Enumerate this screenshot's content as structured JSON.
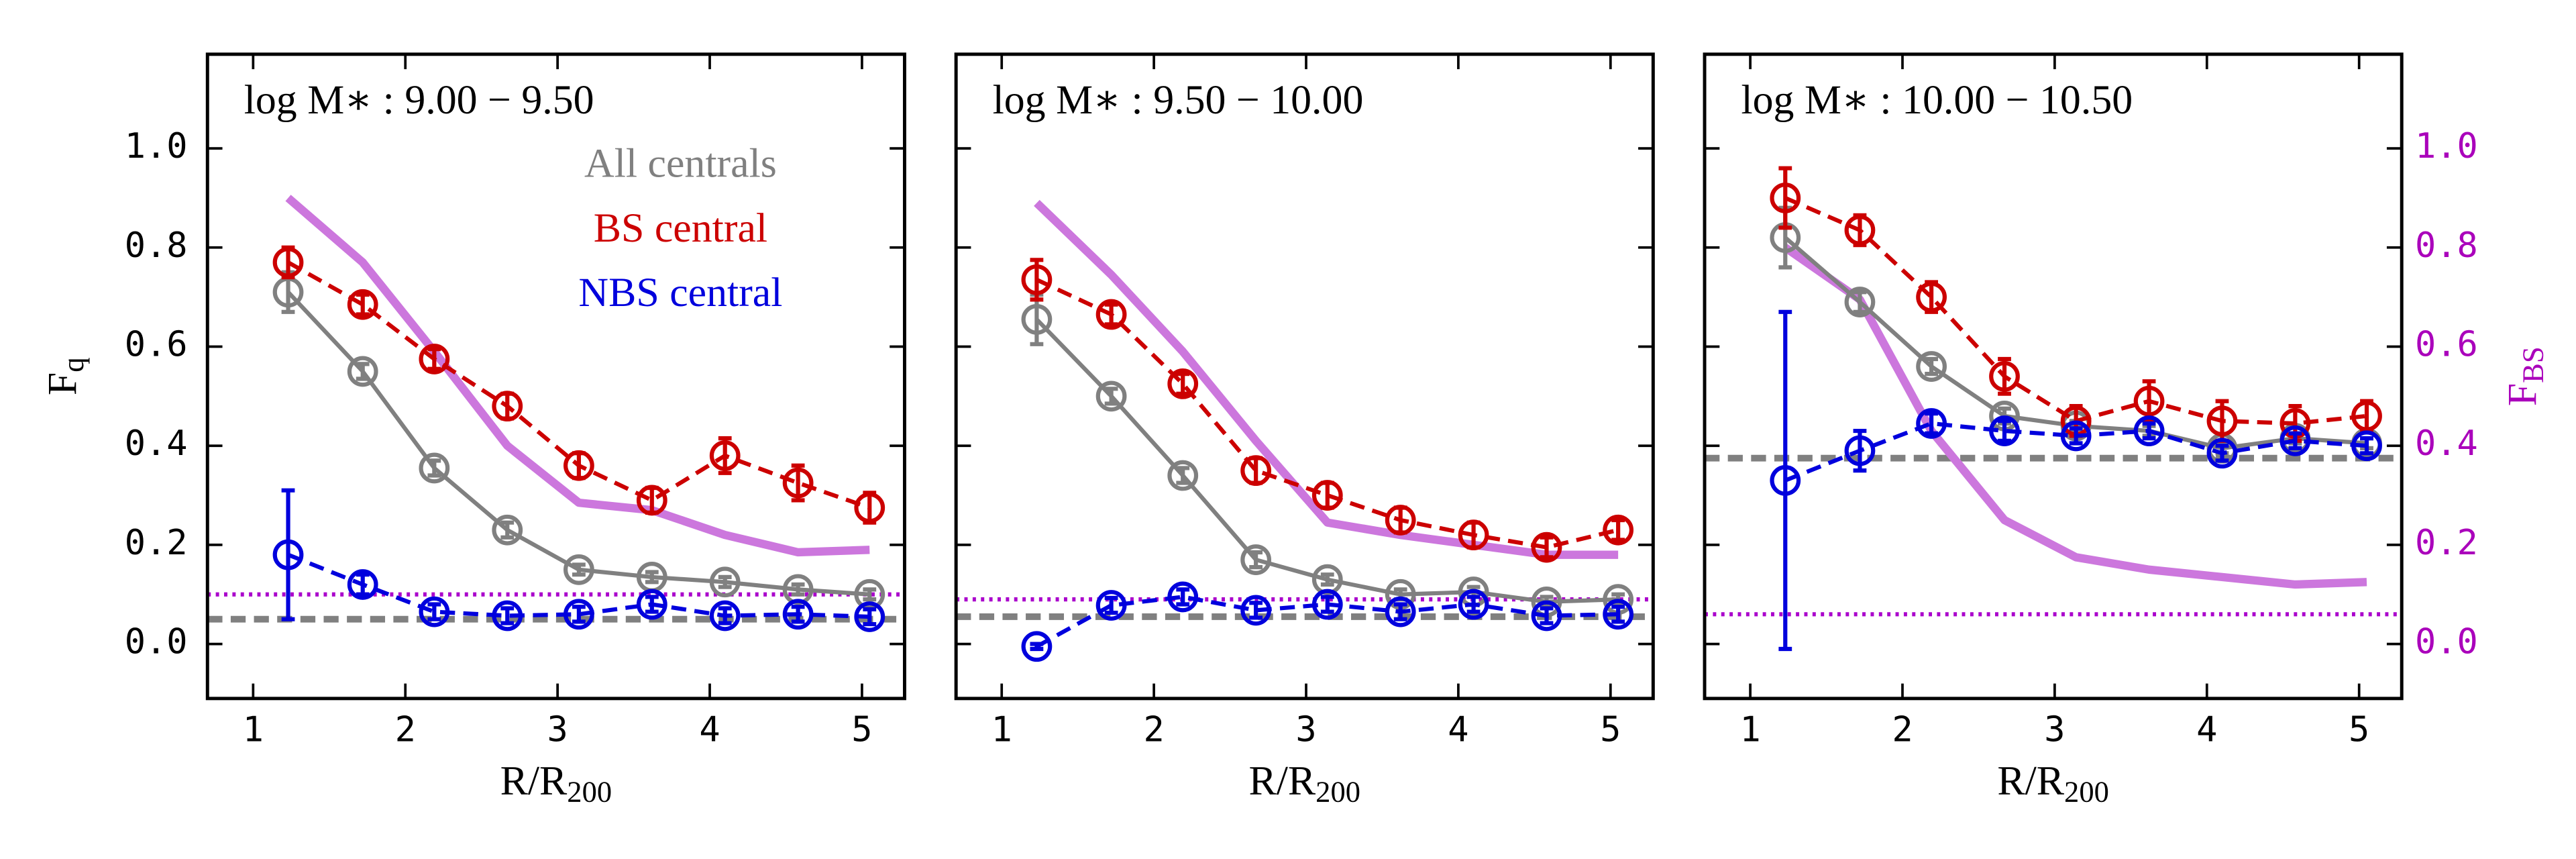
{
  "chart_data": [
    {
      "type": "line",
      "title": "log M∗ : 9.00 − 9.50",
      "ylabel": {
        "main": "F",
        "sub": "q"
      },
      "xlabel": {
        "main": "R/R",
        "sub": "200"
      },
      "legend": "upper right",
      "x": [
        1.23,
        1.72,
        2.19,
        2.67,
        3.14,
        3.62,
        4.1,
        4.58,
        5.05
      ],
      "series": [
        {
          "name": "All centrals",
          "color": "#808080",
          "linestyle": "solid",
          "marker": "circle",
          "values": [
            0.71,
            0.55,
            0.355,
            0.23,
            0.15,
            0.135,
            0.125,
            0.11,
            0.1
          ],
          "errors": [
            0.04,
            0.015,
            0.015,
            0.015,
            0.01,
            0.01,
            0.01,
            0.01,
            0.01
          ]
        },
        {
          "name": "BS central",
          "color": "#cc0000",
          "linestyle": "dashed",
          "marker": "circle",
          "values": [
            0.77,
            0.685,
            0.575,
            0.48,
            0.36,
            0.29,
            0.38,
            0.325,
            0.275
          ],
          "errors": [
            0.03,
            0.02,
            0.02,
            0.025,
            0.025,
            0.025,
            0.035,
            0.035,
            0.03
          ]
        },
        {
          "name": "NBS central",
          "color": "#0000dd",
          "linestyle": "dashed",
          "marker": "circle",
          "values": [
            0.18,
            0.12,
            0.065,
            0.057,
            0.06,
            0.08,
            0.057,
            0.06,
            0.055
          ],
          "errors": [
            0.13,
            0.02,
            0.015,
            0.015,
            0.015,
            0.015,
            0.015,
            0.015,
            0.015
          ]
        },
        {
          "color": "#cc77dd",
          "linestyle": "solid",
          "marker": null,
          "linewidth": 5,
          "values": [
            0.9,
            0.77,
            0.59,
            0.4,
            0.285,
            0.27,
            0.22,
            0.185,
            0.19
          ]
        }
      ],
      "hlines": [
        {
          "value": 0.05,
          "color": "#808080",
          "linestyle": "dashed"
        },
        {
          "value": 0.1,
          "color": "#aa00cc",
          "linestyle": "dotted"
        }
      ],
      "xlim": [
        0.7,
        5.28
      ],
      "ylim": [
        -0.11,
        1.19
      ],
      "xticks": [
        1,
        2,
        3,
        4,
        5
      ],
      "yticks": [
        {
          "value": 0,
          "label": "0.0"
        },
        {
          "value": 0.2,
          "label": "0.2"
        },
        {
          "value": 0.4,
          "label": "0.4"
        },
        {
          "value": 0.6,
          "label": "0.6"
        },
        {
          "value": 0.8,
          "label": "0.8"
        },
        {
          "value": 1,
          "label": "1.0"
        }
      ]
    },
    {
      "type": "line",
      "title": "log M∗ : 9.50 − 10.00",
      "xlabel": {
        "main": "R/R",
        "sub": "200"
      },
      "x": [
        1.23,
        1.72,
        2.19,
        2.67,
        3.14,
        3.62,
        4.1,
        4.58,
        5.05
      ],
      "series": [
        {
          "color": "#808080",
          "linestyle": "solid",
          "marker": "circle",
          "values": [
            0.655,
            0.5,
            0.34,
            0.17,
            0.13,
            0.1,
            0.105,
            0.085,
            0.09
          ],
          "errors": [
            0.05,
            0.015,
            0.015,
            0.015,
            0.01,
            0.01,
            0.01,
            0.01,
            0.01
          ]
        },
        {
          "color": "#cc0000",
          "linestyle": "dashed",
          "marker": "circle",
          "values": [
            0.735,
            0.665,
            0.525,
            0.35,
            0.3,
            0.25,
            0.22,
            0.195,
            0.23
          ],
          "errors": [
            0.04,
            0.02,
            0.02,
            0.025,
            0.025,
            0.025,
            0.025,
            0.02,
            0.02
          ]
        },
        {
          "color": "#0000dd",
          "linestyle": "dashed",
          "marker": "circle",
          "values": [
            -0.005,
            0.078,
            0.095,
            0.068,
            0.08,
            0.065,
            0.08,
            0.057,
            0.06
          ],
          "errors": [
            0.005,
            0.015,
            0.015,
            0.015,
            0.015,
            0.015,
            0.015,
            0.015,
            0.015
          ]
        },
        {
          "color": "#cc77dd",
          "linestyle": "solid",
          "marker": null,
          "linewidth": 5,
          "values": [
            0.89,
            0.745,
            0.59,
            0.41,
            0.245,
            0.22,
            0.2,
            0.18,
            0.18
          ]
        }
      ],
      "hlines": [
        {
          "value": 0.055,
          "color": "#808080",
          "linestyle": "dashed"
        },
        {
          "value": 0.09,
          "color": "#aa00cc",
          "linestyle": "dotted"
        }
      ],
      "xlim": [
        0.7,
        5.28
      ],
      "ylim": [
        -0.11,
        1.19
      ],
      "xticks": [
        1,
        2,
        3,
        4,
        5
      ],
      "yticks": [
        0,
        0.2,
        0.4,
        0.6,
        0.8,
        1
      ]
    },
    {
      "type": "line",
      "title": "log M∗ : 10.00 − 10.50",
      "xlabel": {
        "main": "R/R",
        "sub": "200"
      },
      "y2label": {
        "main": "F",
        "sub": "BS"
      },
      "y2color": "#aa00bb",
      "x": [
        1.23,
        1.72,
        2.19,
        2.67,
        3.14,
        3.62,
        4.1,
        4.58,
        5.05
      ],
      "series": [
        {
          "color": "#808080",
          "linestyle": "solid",
          "marker": "circle",
          "values": [
            0.82,
            0.69,
            0.56,
            0.46,
            0.44,
            0.43,
            0.395,
            0.415,
            0.405
          ],
          "errors": [
            0.06,
            0.02,
            0.015,
            0.015,
            0.01,
            0.01,
            0.01,
            0.01,
            0.01
          ]
        },
        {
          "color": "#cc0000",
          "linestyle": "dashed",
          "marker": "circle",
          "values": [
            0.9,
            0.835,
            0.7,
            0.54,
            0.45,
            0.49,
            0.45,
            0.445,
            0.46
          ],
          "errors": [
            0.06,
            0.03,
            0.03,
            0.035,
            0.03,
            0.04,
            0.04,
            0.035,
            0.03
          ]
        },
        {
          "color": "#0000dd",
          "linestyle": "dashed",
          "marker": "circle",
          "values": [
            0.33,
            0.39,
            0.445,
            0.43,
            0.42,
            0.43,
            0.385,
            0.41,
            0.4
          ],
          "errors": [
            0.34,
            0.04,
            0.02,
            0.02,
            0.015,
            0.015,
            0.015,
            0.015,
            0.015
          ]
        },
        {
          "color": "#cc77dd",
          "linestyle": "solid",
          "marker": null,
          "linewidth": 5,
          "axis": "y2",
          "values": [
            0.8,
            0.695,
            0.43,
            0.25,
            0.175,
            0.15,
            0.135,
            0.12,
            0.125
          ]
        }
      ],
      "hlines": [
        {
          "value": 0.375,
          "color": "#808080",
          "linestyle": "dashed"
        },
        {
          "value": 0.06,
          "color": "#aa00cc",
          "linestyle": "dotted",
          "axis": "y2"
        }
      ],
      "xlim": [
        0.7,
        5.28
      ],
      "ylim": [
        -0.11,
        1.19
      ],
      "xticks": [
        1,
        2,
        3,
        4,
        5
      ],
      "yticks": [
        0,
        0.2,
        0.4,
        0.6,
        0.8,
        1
      ],
      "y2lim": [
        -0.11,
        1.19
      ],
      "y2ticks": [
        {
          "value": 0,
          "label": "0.0"
        },
        {
          "value": 0.2,
          "label": "0.2"
        },
        {
          "value": 0.4,
          "label": "0.4"
        },
        {
          "value": 0.6,
          "label": "0.6"
        },
        {
          "value": 0.8,
          "label": "0.8"
        },
        {
          "value": 1,
          "label": "1.0"
        }
      ]
    }
  ]
}
